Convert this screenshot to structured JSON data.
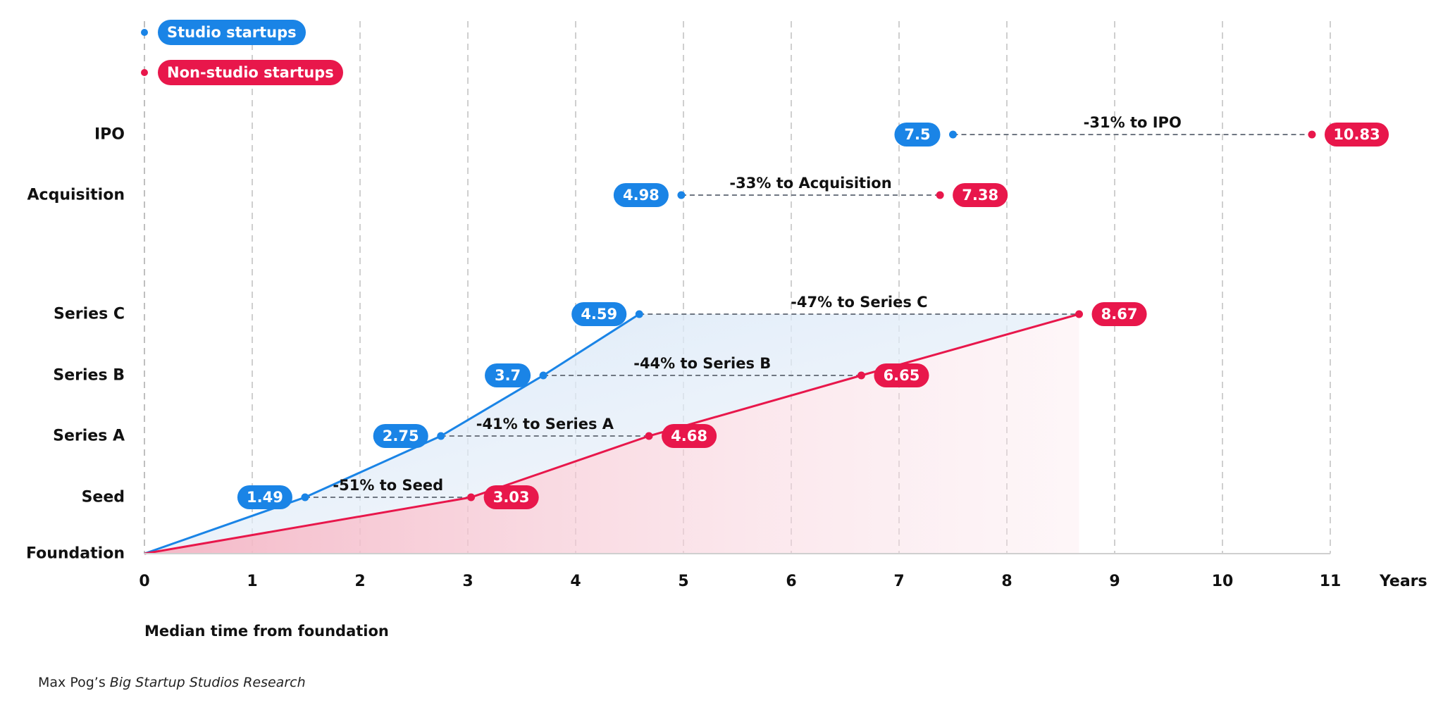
{
  "legend": {
    "studio": "Studio startups",
    "non_studio": "Non-studio startups"
  },
  "colors": {
    "studio": "#1a84e6",
    "non_studio": "#e8174b",
    "grid": "#cfcfcf",
    "connector": "#6f7782"
  },
  "axis": {
    "x_title": "Median time from foundation",
    "x_unit": "Years"
  },
  "source": {
    "prefix": "Max Pog’s ",
    "title": "Big Startup Studios Research"
  },
  "chart_data": {
    "type": "line",
    "x_ticks": [
      0,
      1,
      2,
      3,
      4,
      5,
      6,
      7,
      8,
      9,
      10,
      11
    ],
    "xlim": [
      0,
      11
    ],
    "y_categories": [
      "Foundation",
      "Seed",
      "Series A",
      "Series B",
      "Series C",
      "Acquisition",
      "IPO"
    ],
    "grid": "vertical dashed",
    "legend_placement": "top-left",
    "series": [
      {
        "name": "Studio startups",
        "points": [
          {
            "stage": "Foundation",
            "x": 0
          },
          {
            "stage": "Seed",
            "x": 1.49
          },
          {
            "stage": "Series A",
            "x": 2.75
          },
          {
            "stage": "Series B",
            "x": 3.7
          },
          {
            "stage": "Series C",
            "x": 4.59
          },
          {
            "stage": "Acquisition",
            "x": 4.98
          },
          {
            "stage": "IPO",
            "x": 7.5
          }
        ]
      },
      {
        "name": "Non-studio startups",
        "points": [
          {
            "stage": "Foundation",
            "x": 0
          },
          {
            "stage": "Seed",
            "x": 3.03
          },
          {
            "stage": "Series A",
            "x": 4.68
          },
          {
            "stage": "Series B",
            "x": 6.65
          },
          {
            "stage": "Series C",
            "x": 8.67
          },
          {
            "stage": "Acquisition",
            "x": 7.38
          },
          {
            "stage": "IPO",
            "x": 10.83
          }
        ]
      }
    ],
    "annotations": [
      {
        "stage": "Seed",
        "text": "-51% to Seed"
      },
      {
        "stage": "Series A",
        "text": "-41% to Series A"
      },
      {
        "stage": "Series B",
        "text": "-44% to Series B"
      },
      {
        "stage": "Series C",
        "text": "-47% to Series C"
      },
      {
        "stage": "Acquisition",
        "text": "-33% to Acquisition"
      },
      {
        "stage": "IPO",
        "text": "-31% to IPO"
      }
    ]
  }
}
